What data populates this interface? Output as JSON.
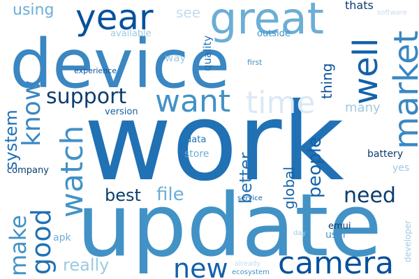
{
  "colors": {
    "dark": "#08519c",
    "mid": "#4292c6",
    "light": "#9ecae1",
    "faint": "#c6dbef",
    "background": "#ffffff"
  },
  "words": {
    "work": "work",
    "update": "update",
    "device": "device",
    "great": "great",
    "year": "year",
    "camera": "camera",
    "want": "want",
    "time": "time",
    "market": "market",
    "well": "well",
    "watch": "watch",
    "know": "know",
    "good": "good",
    "make": "make",
    "new": "new",
    "support": "support",
    "need": "need",
    "best": "best",
    "file": "file",
    "really": "really",
    "system": "system",
    "better": "better",
    "people": "people",
    "thing": "thing",
    "global": "global",
    "using": "using",
    "see": "see",
    "thats": "thats",
    "software": "software",
    "available": "available",
    "outside": "outside",
    "way": "way",
    "quality": "quality",
    "first": "first",
    "experience": "experience",
    "version": "version",
    "many": "many",
    "data": "data",
    "store": "store",
    "battery": "battery",
    "company": "company",
    "yes": "yes",
    "service": "service",
    "apk": "apk",
    "emui": "emui",
    "user": "user",
    "day": "day",
    "developer": "developer",
    "already": "already",
    "ecosystem": "ecosystem"
  }
}
